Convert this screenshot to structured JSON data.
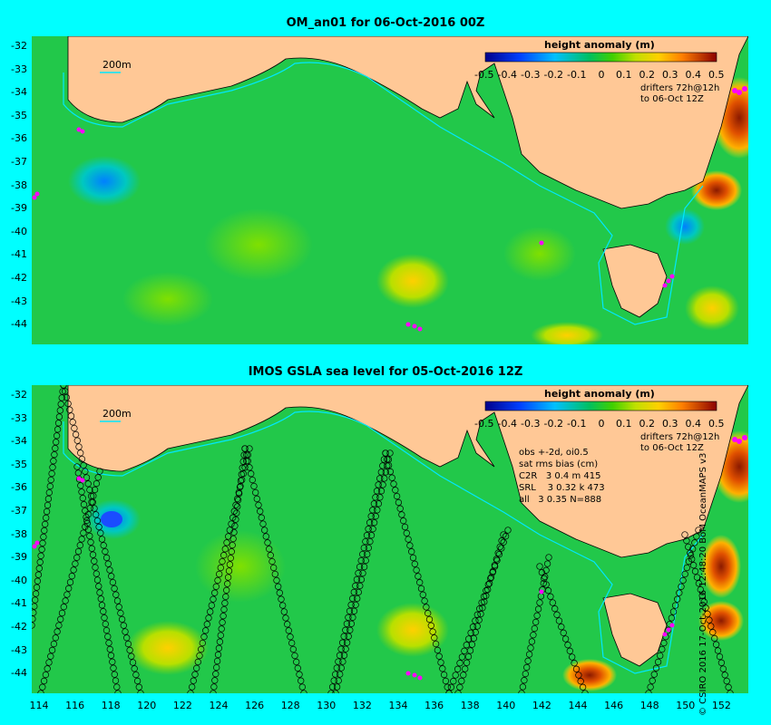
{
  "top_panel": {
    "title": "OM_an01 for 06-Oct-2016 00Z",
    "isobath_label": "200m",
    "colorbar": {
      "title": "height anomaly (m)",
      "ticks": [
        "-0.5",
        "-0.4",
        "-0.3",
        "-0.2",
        "-0.1",
        "0",
        "0.1",
        "0.2",
        "0.3",
        "0.4",
        "0.5"
      ]
    },
    "drifters_line1": "drifters 72h@12h",
    "drifters_line2": "to 06-Oct 12Z",
    "lat_labels": [
      "-32",
      "-33",
      "-34",
      "-35",
      "-36",
      "-37",
      "-38",
      "-39",
      "-40",
      "-41",
      "-42",
      "-43",
      "-44"
    ]
  },
  "bottom_panel": {
    "title": "IMOS GSLA sea level  for 05-Oct-2016 12Z",
    "isobath_label": "200m",
    "colorbar": {
      "title": "height anomaly (m)",
      "ticks": [
        "-0.5",
        "-0.4",
        "-0.3",
        "-0.2",
        "-0.1",
        "0",
        "0.1",
        "0.2",
        "0.3",
        "0.4",
        "0.5"
      ]
    },
    "drifters_line1": "drifters 72h@12h",
    "drifters_line2": "to 06-Oct 12Z",
    "stats": {
      "line1": "obs +-2d, oi0.5",
      "line2": "sat rms bias (cm)",
      "line3": "C2R   3 0.4 m 415",
      "line4": "SRL    3 0.32 k 473",
      "line5": "all   3 0.35 N=888"
    },
    "lat_labels": [
      "-32",
      "-33",
      "-34",
      "-35",
      "-36",
      "-37",
      "-38",
      "-39",
      "-40",
      "-41",
      "-42",
      "-43",
      "-44"
    ],
    "lon_labels": [
      "114",
      "116",
      "118",
      "120",
      "122",
      "124",
      "126",
      "128",
      "130",
      "132",
      "134",
      "136",
      "138",
      "140",
      "142",
      "144",
      "146",
      "148",
      "150",
      "152"
    ]
  },
  "credit": "© CSIRO 2016  17-Oct-2016 12:48:20 BoM OceanMAPS v3",
  "colors": {
    "background": "#00ffff",
    "ocean_base": "#22c84a",
    "land": "#ffc896",
    "isobath": "#00e8ff",
    "drifter": "#ff00ff",
    "track_circle": "#000000"
  }
}
